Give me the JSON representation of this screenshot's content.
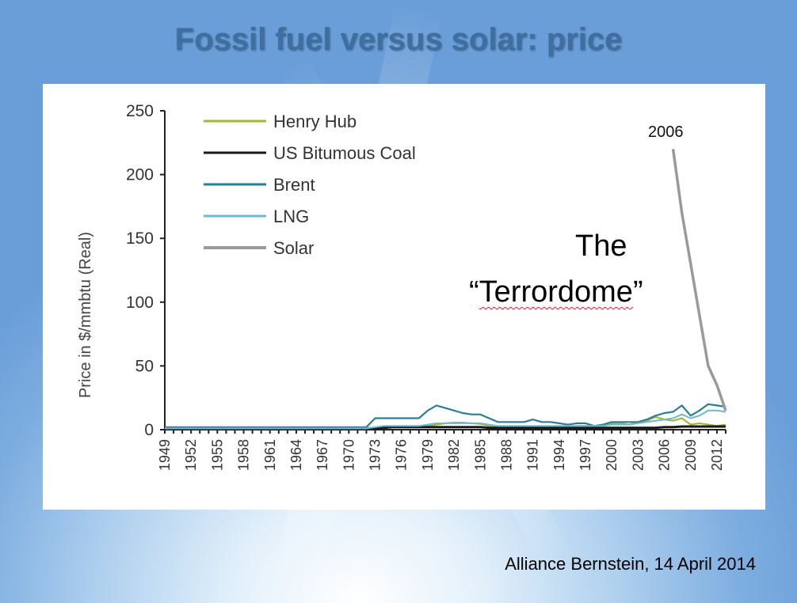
{
  "slide": {
    "title": "Fossil fuel versus solar: price",
    "source": "Alliance Bernstein, 14 April 2014"
  },
  "annotations": {
    "year_marker": "2006",
    "terrordome_line1": "The",
    "terrordome_open_quote": "“",
    "terrordome_word": "Terrordome",
    "terrordome_close_quote": "”"
  },
  "chart_data": {
    "type": "line",
    "ylabel": "Price in $/mmbtu (Real)",
    "xlabel": "",
    "ylim": [
      0,
      250
    ],
    "yticks": [
      0,
      50,
      100,
      150,
      200,
      250
    ],
    "x": [
      1949,
      1950,
      1951,
      1952,
      1953,
      1954,
      1955,
      1956,
      1957,
      1958,
      1959,
      1960,
      1961,
      1962,
      1963,
      1964,
      1965,
      1966,
      1967,
      1968,
      1969,
      1970,
      1971,
      1972,
      1973,
      1974,
      1975,
      1976,
      1977,
      1978,
      1979,
      1980,
      1981,
      1982,
      1983,
      1984,
      1985,
      1986,
      1987,
      1988,
      1989,
      1990,
      1991,
      1992,
      1993,
      1994,
      1995,
      1996,
      1997,
      1998,
      1999,
      2000,
      2001,
      2002,
      2003,
      2004,
      2005,
      2006,
      2007,
      2008,
      2009,
      2010,
      2011,
      2012,
      2013
    ],
    "xticks": [
      1949,
      1952,
      1955,
      1958,
      1961,
      1964,
      1967,
      1970,
      1973,
      1976,
      1979,
      1982,
      1985,
      1988,
      1991,
      1994,
      1997,
      2000,
      2003,
      2006,
      2009,
      2012
    ],
    "legend_position": "top-left",
    "grid": false,
    "series": [
      {
        "name": "Henry Hub",
        "color": "#a3b83a",
        "values": [
          1,
          1,
          1,
          1,
          1,
          1,
          1,
          1,
          1,
          1,
          1,
          1,
          1,
          1,
          1,
          1,
          1,
          1,
          1,
          1,
          1,
          1,
          1,
          1.5,
          1.5,
          2,
          2,
          2,
          2.5,
          3,
          3,
          4,
          5,
          5.5,
          5.5,
          5,
          4.5,
          3,
          2.5,
          2.5,
          2.5,
          2.5,
          2.5,
          2.5,
          2.5,
          2.5,
          2,
          3,
          3,
          2.5,
          3,
          5,
          5,
          4,
          6,
          7,
          10,
          8,
          7,
          9,
          4,
          5,
          4,
          3,
          4
        ]
      },
      {
        "name": "US Bitumous Coal",
        "color": "#1a1a1a",
        "values": [
          1,
          1,
          1,
          1,
          1,
          1,
          1,
          1,
          1,
          1,
          1,
          1,
          1,
          1,
          1,
          1,
          1,
          1,
          1,
          1,
          1,
          1,
          1,
          1,
          1,
          1.5,
          2,
          2,
          2,
          2,
          2,
          2,
          2,
          2,
          2,
          2,
          2,
          1.5,
          1.5,
          1.5,
          1.5,
          1.5,
          1.5,
          1.5,
          1.5,
          1.5,
          1.5,
          1.5,
          1.5,
          1.5,
          1.5,
          1.5,
          1.5,
          1.5,
          1.5,
          1.5,
          1.5,
          2,
          2,
          2.5,
          2.5,
          2.5,
          2.5,
          2.5,
          2.5
        ]
      },
      {
        "name": "Brent",
        "color": "#2c7d96",
        "values": [
          2,
          2,
          2,
          2,
          2,
          2,
          2,
          2,
          2,
          2,
          2,
          2,
          2,
          2,
          2,
          2,
          2,
          2,
          2,
          2,
          2,
          2,
          2,
          2,
          9,
          9,
          9,
          9,
          9,
          9,
          15,
          19,
          17,
          15,
          13,
          12,
          12,
          9,
          6,
          6,
          6,
          6,
          8,
          6,
          6,
          5,
          4,
          5,
          5,
          3,
          4,
          6,
          6,
          6,
          6,
          8,
          11,
          13,
          14,
          19,
          11,
          15,
          20,
          19,
          18
        ]
      },
      {
        "name": "LNG",
        "color": "#6fb8cf",
        "values": [
          1,
          1,
          1,
          1,
          1,
          1,
          1,
          1,
          1,
          1,
          1,
          1,
          1,
          1,
          1,
          1,
          1,
          1,
          1,
          1,
          1,
          1,
          1,
          1,
          2,
          3,
          3,
          3,
          3,
          3,
          4,
          5,
          5,
          5,
          5,
          5,
          5,
          4,
          3,
          3,
          3,
          3,
          3,
          3,
          3,
          3,
          3,
          3,
          3,
          3,
          3,
          4,
          4,
          4,
          5,
          6,
          7,
          8,
          9,
          12,
          9,
          11,
          15,
          15,
          14
        ]
      },
      {
        "name": "Solar",
        "color": "#9a9a9a",
        "values": [
          null,
          null,
          null,
          null,
          null,
          null,
          null,
          null,
          null,
          null,
          null,
          null,
          null,
          null,
          null,
          null,
          null,
          null,
          null,
          null,
          null,
          null,
          null,
          null,
          null,
          null,
          null,
          null,
          null,
          null,
          null,
          null,
          null,
          null,
          null,
          null,
          null,
          null,
          null,
          null,
          null,
          null,
          null,
          null,
          null,
          null,
          null,
          null,
          null,
          null,
          null,
          null,
          null,
          null,
          null,
          null,
          null,
          null,
          220,
          170,
          130,
          90,
          50,
          35,
          15
        ]
      }
    ]
  }
}
